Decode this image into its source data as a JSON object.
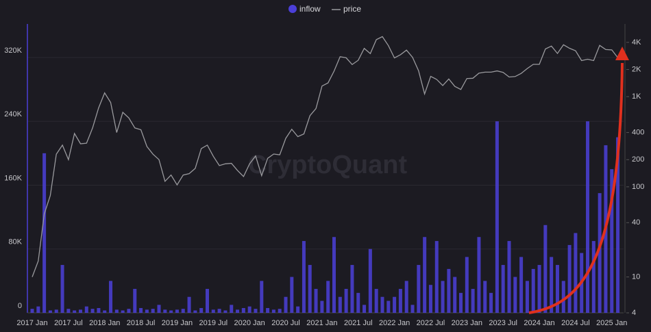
{
  "chart_data": {
    "type": "bar-line",
    "watermark": "CryptoQuant",
    "legend": "top",
    "grid": true,
    "categories": [
      "2017 Jan",
      null,
      null,
      null,
      null,
      null,
      "2017 Jul",
      null,
      null,
      null,
      null,
      null,
      "2018 Jan",
      null,
      null,
      null,
      null,
      null,
      "2018 Jul",
      null,
      null,
      null,
      null,
      null,
      "2019 Jan",
      null,
      null,
      null,
      null,
      null,
      "2019 Jul",
      null,
      null,
      null,
      null,
      null,
      "2020 Jan",
      null,
      null,
      null,
      null,
      null,
      "2020 Jul",
      null,
      null,
      null,
      null,
      null,
      "2021 Jan",
      null,
      null,
      null,
      null,
      null,
      "2021 Jul",
      null,
      null,
      null,
      null,
      null,
      "2022 Jan",
      null,
      null,
      null,
      null,
      null,
      "2022 Jul",
      null,
      null,
      null,
      null,
      null,
      "2023 Jan",
      null,
      null,
      null,
      null,
      null,
      "2023 Jul",
      null,
      null,
      null,
      null,
      null,
      "2024 Jan",
      null,
      null,
      null,
      null,
      null,
      "2024 Jul",
      null,
      null,
      null,
      null,
      null,
      "2025 Jan",
      null
    ],
    "series": [
      {
        "name": "inflow",
        "color": "#4b3fd8",
        "axis": "y",
        "values": [
          5000,
          8000,
          200000,
          3000,
          4000,
          60000,
          5000,
          3000,
          4000,
          8000,
          5000,
          6000,
          3000,
          40000,
          4000,
          3000,
          5000,
          30000,
          6000,
          4000,
          5000,
          10000,
          4000,
          3000,
          4000,
          5000,
          20000,
          3000,
          6000,
          30000,
          4000,
          5000,
          3000,
          10000,
          4000,
          6000,
          8000,
          5000,
          40000,
          6000,
          4000,
          5000,
          20000,
          45000,
          8000,
          90000,
          60000,
          30000,
          15000,
          40000,
          95000,
          20000,
          30000,
          60000,
          25000,
          10000,
          80000,
          30000,
          20000,
          15000,
          20000,
          30000,
          40000,
          10000,
          60000,
          95000,
          35000,
          90000,
          40000,
          55000,
          45000,
          25000,
          70000,
          30000,
          95000,
          40000,
          25000,
          240000,
          60000,
          90000,
          45000,
          70000,
          40000,
          55000,
          60000,
          110000,
          70000,
          60000,
          40000,
          85000,
          100000,
          75000,
          240000,
          90000,
          150000,
          210000,
          180000,
          220000
        ]
      },
      {
        "name": "price",
        "color": "#9a9a9e",
        "axis": "y2",
        "values": [
          10,
          15,
          50,
          80,
          230,
          290,
          200,
          390,
          300,
          305,
          450,
          750,
          1100,
          860,
          400,
          670,
          580,
          450,
          430,
          280,
          230,
          200,
          115,
          135,
          105,
          135,
          140,
          160,
          265,
          290,
          218,
          172,
          180,
          182,
          152,
          130,
          180,
          220,
          133,
          207,
          231,
          226,
          345,
          435,
          360,
          386,
          615,
          737,
          1310,
          1420,
          1920,
          2770,
          2700,
          2270,
          2530,
          3430,
          3000,
          4290,
          4630,
          3680,
          2690,
          2920,
          3280,
          2730,
          1940,
          1070,
          1680,
          1550,
          1330,
          1570,
          1300,
          1200,
          1590,
          1600,
          1820,
          1870,
          1870,
          1930,
          1860,
          1650,
          1670,
          1810,
          2050,
          2280,
          2280,
          3380,
          3640,
          3010,
          3760,
          3440,
          3230,
          2510,
          2600,
          2510,
          3700,
          3330,
          3300,
          2700
        ]
      }
    ],
    "ylim": [
      0,
      362000
    ],
    "yticks": [
      0,
      {
        "value": 80000,
        "label": "80K"
      },
      {
        "value": 160000,
        "label": "160K"
      },
      {
        "value": 240000,
        "label": "240K"
      },
      {
        "value": 320000,
        "label": "320K"
      }
    ],
    "y2lim": [
      4,
      6400
    ],
    "y2log": true,
    "y2ticks": [
      4,
      10,
      40,
      100,
      200,
      400,
      {
        "value": 1000,
        "label": "1K"
      },
      {
        "value": 2000,
        "label": "2K"
      },
      {
        "value": 4000,
        "label": "4K"
      }
    ]
  }
}
